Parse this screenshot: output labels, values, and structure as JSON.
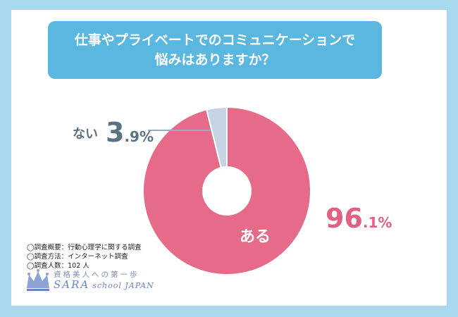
{
  "title_lines": [
    "仕事やプライベートでのコミュニケーションで",
    "悩みはありますか？"
  ],
  "chart_data": {
    "type": "pie",
    "donut": true,
    "title": "仕事やプライベートでのコミュニケーションで悩みはありますか？",
    "slices": [
      {
        "label": "ある",
        "value": 96.1,
        "color": "#e56b89",
        "value_main": "96",
        "value_sub": ".1%"
      },
      {
        "label": "ない",
        "value": 3.9,
        "color": "#c5d3e3",
        "value_main": "3",
        "value_sub": ".9%"
      }
    ]
  },
  "survey": [
    "◯調査概要：行動心理学に関する調査",
    "◯調査方法：インターネット調査",
    "◯調査人数：102 人"
  ],
  "logo": {
    "tagline": "資格美人への第一歩",
    "name_main": "SARA",
    "name_sub": "school JAPAN",
    "color": "#6b84c6"
  }
}
